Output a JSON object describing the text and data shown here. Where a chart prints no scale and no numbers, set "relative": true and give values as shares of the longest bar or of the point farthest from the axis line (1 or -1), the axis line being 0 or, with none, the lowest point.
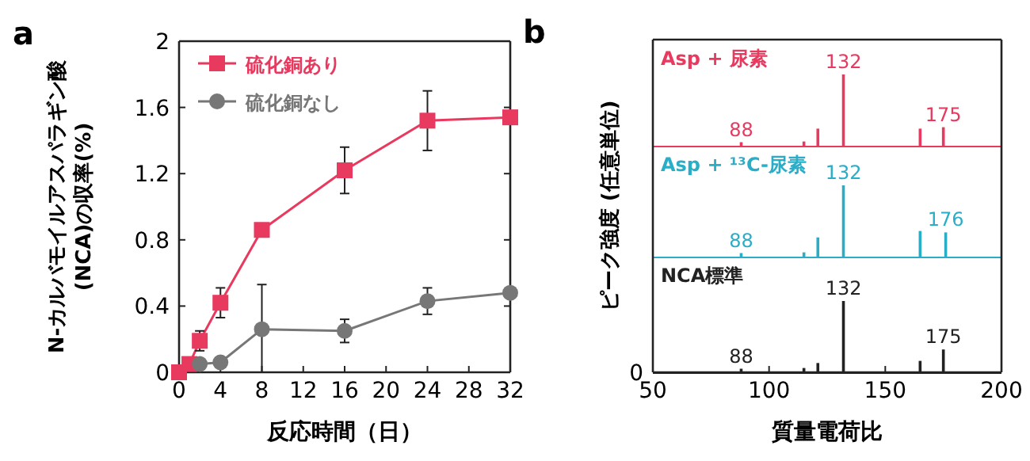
{
  "chart_data": [
    {
      "type": "line",
      "xlabel": "反応時間（日）",
      "ylabel": "N-カルバモイルアスパラギン酸\n(NCA)の収率(%)",
      "annotations": [
        "a"
      ],
      "xlim": [
        0,
        32
      ],
      "ylim": [
        0,
        2
      ],
      "xticks": [
        0,
        4,
        8,
        12,
        16,
        20,
        24,
        28,
        32
      ],
      "yticks": [
        0,
        0.4,
        0.8,
        1.2,
        1.6,
        2
      ],
      "legend": "top left",
      "line_style": "solid",
      "series": [
        {
          "name": "硫化銅あり",
          "color": "#e8395f",
          "marker": "square",
          "x": [
            0,
            1,
            2,
            4,
            8,
            16,
            24,
            32
          ],
          "values": [
            0,
            0.05,
            0.19,
            0.42,
            0.86,
            1.22,
            1.52,
            1.54
          ],
          "errors": [
            null,
            null,
            0.06,
            0.09,
            null,
            0.14,
            0.18,
            null
          ]
        },
        {
          "name": "硫化銅なし",
          "color": "#777777",
          "marker": "circle",
          "x": [
            2,
            4,
            8,
            16,
            24,
            32
          ],
          "values": [
            0.05,
            0.06,
            0.26,
            0.25,
            0.43,
            0.48
          ],
          "errors": [
            null,
            null,
            [
              0,
              0.53
            ],
            0.07,
            0.08,
            null
          ]
        }
      ]
    },
    {
      "type": "bar",
      "relative": true,
      "xlim": [
        50,
        200
      ],
      "annotations": [
        "b",
        {
          "text": "88",
          "x": 88,
          "y": 0.05
        },
        {
          "text": "132",
          "x": 132,
          "y": 1
        },
        {
          "text": "175",
          "x": 175,
          "y": 0.26
        }
      ],
      "series": [
        {
          "name": "Asp + 尿素",
          "color": "#e8395f",
          "x": [
            88,
            115,
            121,
            132,
            165,
            175
          ],
          "values": [
            0.05,
            0.06,
            0.24,
            1,
            0.24,
            0.26
          ]
        }
      ]
    },
    {
      "type": "bar",
      "relative": true,
      "xlim": [
        50,
        200
      ],
      "ylabel": "ピーク強度 (任意単位)",
      "annotations": [
        {
          "text": "88",
          "x": 88,
          "y": 0.05
        },
        {
          "text": "132",
          "x": 132,
          "y": 1
        },
        {
          "text": "176",
          "x": 176,
          "y": 0.34
        }
      ],
      "series": [
        {
          "name": "Asp + ¹³C-尿素",
          "color": "#2aaec8",
          "x": [
            88,
            115,
            121,
            132,
            165,
            176
          ],
          "values": [
            0.05,
            0.06,
            0.27,
            1,
            0.36,
            0.34
          ]
        }
      ]
    },
    {
      "type": "bar",
      "relative": true,
      "xlim": [
        50,
        200
      ],
      "xticks": [
        50,
        100,
        150,
        200
      ],
      "xlabel": "質量電荷比",
      "annotations": [
        "0",
        {
          "text": "88",
          "x": 88,
          "y": 0.05
        },
        {
          "text": "132",
          "x": 132,
          "y": 1
        },
        {
          "text": "175",
          "x": 175,
          "y": 0.32
        }
      ],
      "series": [
        {
          "name": "NCA標準",
          "color": "#222222",
          "x": [
            88,
            115,
            121,
            132,
            165,
            175
          ],
          "values": [
            0.05,
            0.06,
            0.13,
            1,
            0.16,
            0.32
          ]
        }
      ]
    }
  ]
}
